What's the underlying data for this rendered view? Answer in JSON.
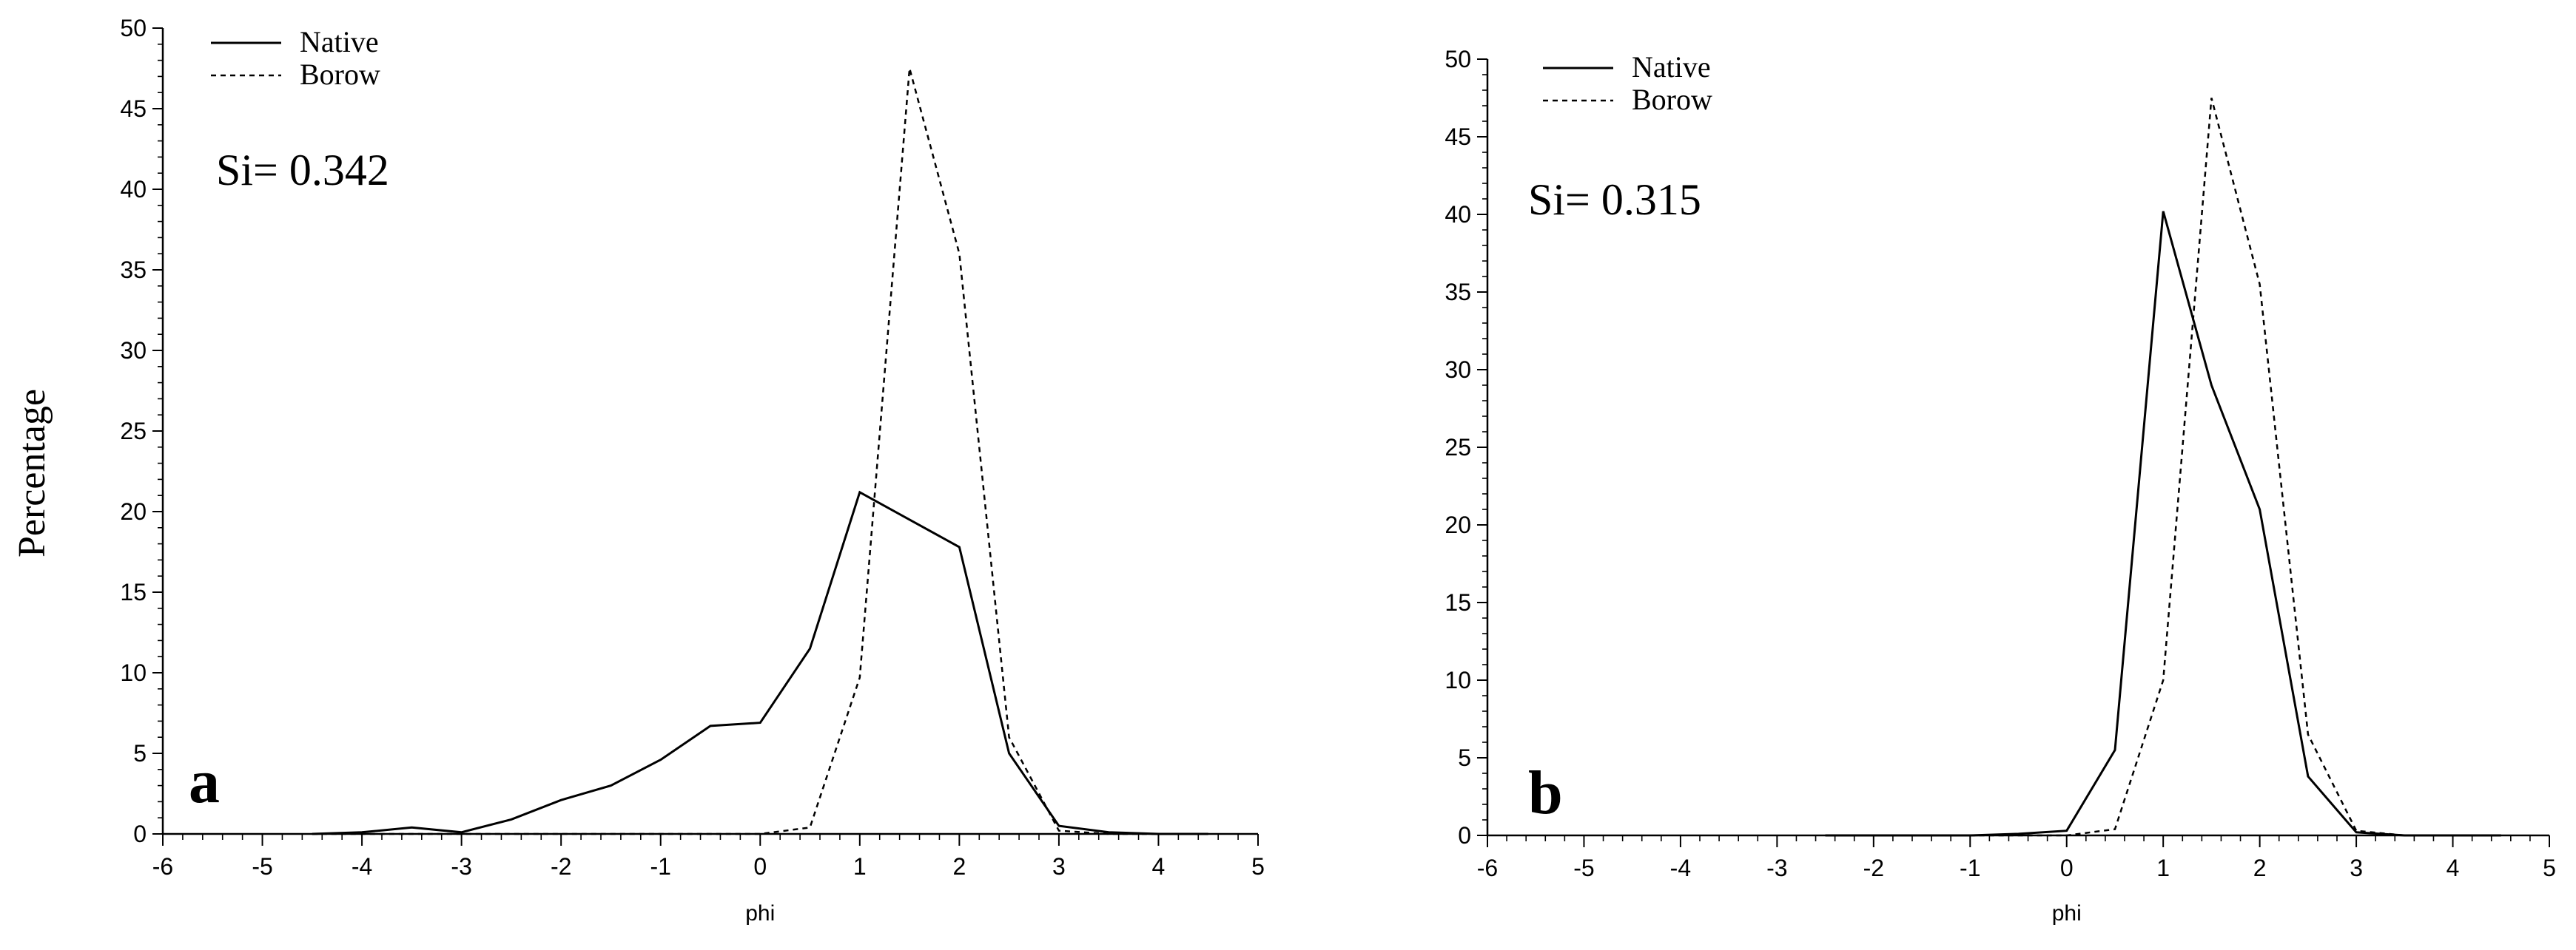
{
  "ylabel": "Percentage",
  "chart_data": [
    {
      "type": "line",
      "panel_label": "a",
      "annotation": "Si= 0.342",
      "title": "",
      "xlabel": "phi",
      "ylabel": "Percentage",
      "xlim": [
        -6,
        5
      ],
      "ylim": [
        0,
        50
      ],
      "xticks": [
        -6,
        -5,
        -4,
        -3,
        -2,
        -1,
        0,
        1,
        2,
        3,
        4,
        5
      ],
      "yticks": [
        0,
        5,
        10,
        15,
        20,
        25,
        30,
        35,
        40,
        45,
        50
      ],
      "legend_position": "top-left",
      "series": [
        {
          "name": "Native",
          "style": "solid",
          "x": [
            -4.5,
            -4,
            -3.5,
            -3,
            -2.5,
            -2,
            -1.5,
            -1,
            -0.5,
            0,
            0.5,
            1,
            1.5,
            2,
            2.5,
            3,
            3.5,
            4,
            4.5
          ],
          "y": [
            0,
            0.1,
            0.4,
            0.1,
            0.9,
            2.1,
            3,
            4.6,
            6.7,
            6.9,
            11.5,
            21.2,
            19.5,
            17.8,
            5,
            0.5,
            0.1,
            0,
            0
          ]
        },
        {
          "name": "Borow",
          "style": "dashed",
          "x": [
            -4.5,
            -4,
            -3.5,
            -3,
            -2.5,
            -2,
            -1.5,
            -1,
            -0.5,
            0,
            0.5,
            1,
            1.5,
            2,
            2.5,
            3,
            3.5,
            4,
            4.5
          ],
          "y": [
            0,
            0,
            0,
            0,
            0,
            0,
            0,
            0,
            0,
            0,
            0.4,
            9.7,
            47.5,
            36,
            6,
            0.2,
            0,
            0,
            0
          ]
        }
      ]
    },
    {
      "type": "line",
      "panel_label": "b",
      "annotation": "Si= 0.315",
      "title": "",
      "xlabel": "phi",
      "ylabel": "",
      "xlim": [
        -6,
        5
      ],
      "ylim": [
        0,
        50
      ],
      "xticks": [
        -6,
        -5,
        -4,
        -3,
        -2,
        -1,
        0,
        1,
        2,
        3,
        4,
        5
      ],
      "yticks": [
        0,
        5,
        10,
        15,
        20,
        25,
        30,
        35,
        40,
        45,
        50
      ],
      "legend_position": "top-left",
      "series": [
        {
          "name": "Native",
          "style": "solid",
          "x": [
            -2.5,
            -2,
            -1.5,
            -1,
            -0.5,
            0,
            0.5,
            1,
            1.5,
            2,
            2.5,
            3,
            3.5,
            4,
            4.5
          ],
          "y": [
            0,
            0,
            0,
            0,
            0.1,
            0.3,
            5.5,
            40.2,
            29,
            21,
            3.8,
            0.2,
            0,
            0,
            0
          ]
        },
        {
          "name": "Borow",
          "style": "dashed",
          "x": [
            -2.5,
            -2,
            -1.5,
            -1,
            -0.5,
            0,
            0.5,
            1,
            1.5,
            2,
            2.5,
            3,
            3.5,
            4,
            4.5
          ],
          "y": [
            0,
            0,
            0,
            0,
            0,
            0,
            0.4,
            10,
            47.5,
            35.5,
            6.5,
            0.3,
            0,
            0,
            0
          ]
        }
      ]
    }
  ]
}
